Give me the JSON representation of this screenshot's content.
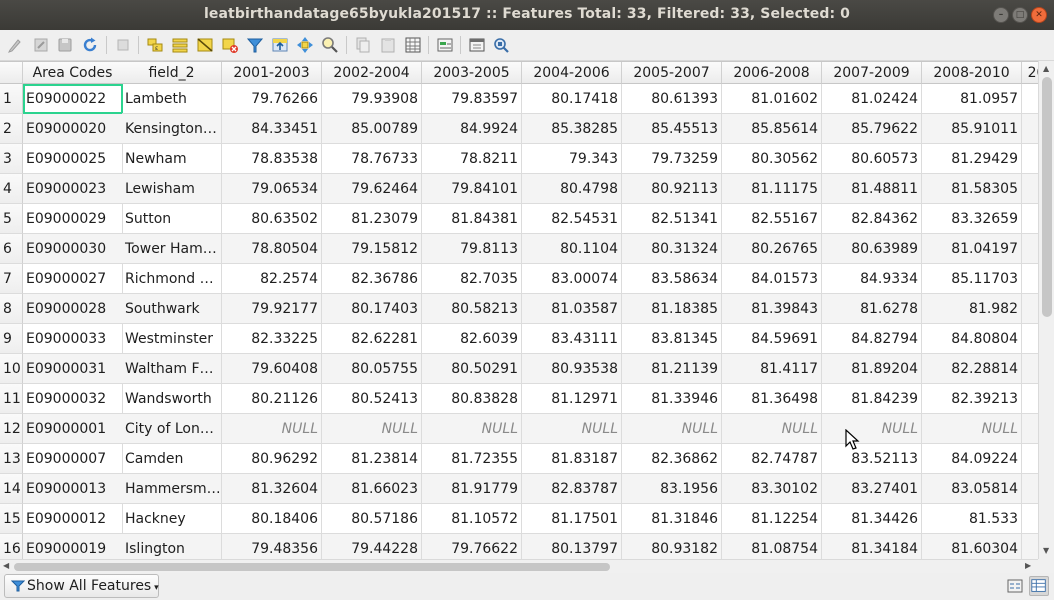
{
  "window": {
    "title": "leatbirthandatage65byukla201517 :: Features Total: 33, Filtered: 33, Selected: 0",
    "minimize_glyph": "–",
    "maximize_glyph": "□",
    "close_glyph": "✕"
  },
  "toolbar": {
    "icons": [
      "toggle-editing-icon",
      "multi-edit-icon",
      "save-edits-icon",
      "reload-icon",
      "add-feature-icon",
      "delete-features-icon",
      "select-by-expression-icon",
      "select-all-icon",
      "invert-selection-icon",
      "deselect-all-icon",
      "filter-select-icon",
      "move-selection-top-icon",
      "pan-to-selected-icon",
      "zoom-to-selected-icon",
      "copy-rows-icon",
      "paste-features-icon",
      "new-field-icon",
      "delete-field-icon",
      "open-field-calculator-icon",
      "conditional-formatting-icon",
      "actions-icon",
      "dock-table-icon"
    ]
  },
  "table": {
    "columns": [
      "Area Codes",
      "field_2",
      "2001-2003",
      "2002-2004",
      "2003-2005",
      "2004-2006",
      "2005-2007",
      "2006-2008",
      "2007-2009",
      "2008-2010",
      "20"
    ],
    "null_label": "NULL",
    "rows": [
      {
        "num": "1",
        "code": "E09000022",
        "name": "Lambeth",
        "v": [
          "79.76266",
          "79.93908",
          "79.83597",
          "80.17418",
          "80.61393",
          "81.01602",
          "81.02424",
          "81.0957"
        ]
      },
      {
        "num": "2",
        "code": "E09000020",
        "name": "Kensington…",
        "v": [
          "84.33451",
          "85.00789",
          "84.9924",
          "85.38285",
          "85.45513",
          "85.85614",
          "85.79622",
          "85.91011"
        ]
      },
      {
        "num": "3",
        "code": "E09000025",
        "name": "Newham",
        "v": [
          "78.83538",
          "78.76733",
          "78.8211",
          "79.343",
          "79.73259",
          "80.30562",
          "80.60573",
          "81.29429"
        ]
      },
      {
        "num": "4",
        "code": "E09000023",
        "name": "Lewisham",
        "v": [
          "79.06534",
          "79.62464",
          "79.84101",
          "80.4798",
          "80.92113",
          "81.11175",
          "81.48811",
          "81.58305"
        ]
      },
      {
        "num": "5",
        "code": "E09000029",
        "name": "Sutton",
        "v": [
          "80.63502",
          "81.23079",
          "81.84381",
          "82.54531",
          "82.51341",
          "82.55167",
          "82.84362",
          "83.32659"
        ]
      },
      {
        "num": "6",
        "code": "E09000030",
        "name": "Tower Ham…",
        "v": [
          "78.80504",
          "79.15812",
          "79.8113",
          "80.1104",
          "80.31324",
          "80.26765",
          "80.63989",
          "81.04197"
        ]
      },
      {
        "num": "7",
        "code": "E09000027",
        "name": "Richmond …",
        "v": [
          "82.2574",
          "82.36786",
          "82.7035",
          "83.00074",
          "83.58634",
          "84.01573",
          "84.9334",
          "85.11703"
        ]
      },
      {
        "num": "8",
        "code": "E09000028",
        "name": "Southwark",
        "v": [
          "79.92177",
          "80.17403",
          "80.58213",
          "81.03587",
          "81.18385",
          "81.39843",
          "81.6278",
          "81.982"
        ]
      },
      {
        "num": "9",
        "code": "E09000033",
        "name": "Westminster",
        "v": [
          "82.33225",
          "82.62281",
          "82.6039",
          "83.43111",
          "83.81345",
          "84.59691",
          "84.82794",
          "84.80804"
        ]
      },
      {
        "num": "10",
        "code": "E09000031",
        "name": "Waltham F…",
        "v": [
          "79.60408",
          "80.05755",
          "80.50291",
          "80.93538",
          "81.21139",
          "81.4117",
          "81.89204",
          "82.28814"
        ]
      },
      {
        "num": "11",
        "code": "E09000032",
        "name": "Wandsworth",
        "v": [
          "80.21126",
          "80.52413",
          "80.83828",
          "81.12971",
          "81.33946",
          "81.36498",
          "81.84239",
          "82.39213"
        ]
      },
      {
        "num": "12",
        "code": "E09000001",
        "name": "City of Lon…",
        "v": [
          "NULL",
          "NULL",
          "NULL",
          "NULL",
          "NULL",
          "NULL",
          "NULL",
          "NULL"
        ]
      },
      {
        "num": "13",
        "code": "E09000007",
        "name": "Camden",
        "v": [
          "80.96292",
          "81.23814",
          "81.72355",
          "81.83187",
          "82.36862",
          "82.74787",
          "83.52113",
          "84.09224"
        ]
      },
      {
        "num": "14",
        "code": "E09000013",
        "name": "Hammersm…",
        "v": [
          "81.32604",
          "81.66023",
          "81.91779",
          "82.83787",
          "83.1956",
          "83.30102",
          "83.27401",
          "83.05814"
        ]
      },
      {
        "num": "15",
        "code": "E09000012",
        "name": "Hackney",
        "v": [
          "80.18406",
          "80.57186",
          "81.10572",
          "81.17501",
          "81.31846",
          "81.12254",
          "81.34426",
          "81.533"
        ]
      },
      {
        "num": "16",
        "code": "E09000019",
        "name": "Islington",
        "v": [
          "79.48356",
          "79.44228",
          "79.76622",
          "80.13797",
          "80.93182",
          "81.08754",
          "81.34184",
          "81.60304"
        ]
      }
    ]
  },
  "bottom": {
    "show_all_label": "Show All Features"
  }
}
